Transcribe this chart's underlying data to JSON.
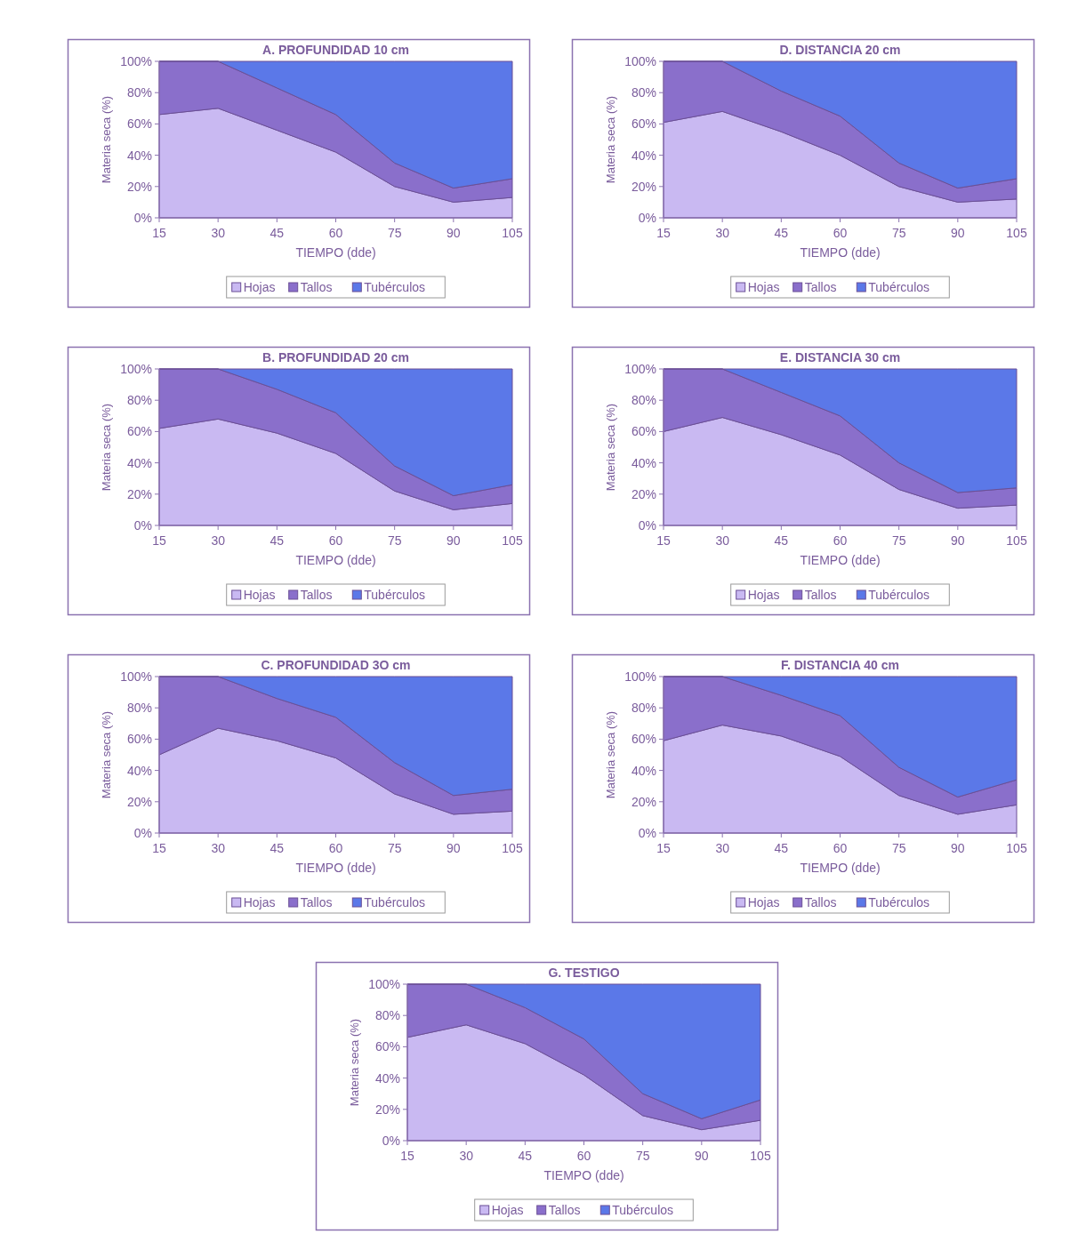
{
  "chart_data": [
    {
      "type": "area",
      "title": "A. PROFUNDIDAD 10 cm",
      "xlabel": "TIEMPO (dde)",
      "ylabel": "Materia seca (%)",
      "x": [
        15,
        30,
        45,
        60,
        75,
        90,
        105
      ],
      "xlim": [
        15,
        105
      ],
      "xticks": [
        15,
        30,
        45,
        60,
        75,
        90,
        105
      ],
      "ylim": [
        0,
        100
      ],
      "yticks": [
        {
          "value": 0,
          "label": "0%"
        },
        {
          "value": 20,
          "label": "20%"
        },
        {
          "value": 40,
          "label": "40%"
        },
        {
          "value": 60,
          "label": "60%"
        },
        {
          "value": 80,
          "label": "80%"
        },
        {
          "value": 100,
          "label": "100%"
        }
      ],
      "stacked": true,
      "legend": "bottom",
      "series": [
        {
          "name": "Hojas",
          "color": "#c9b9f2",
          "values": [
            66,
            70,
            56,
            42,
            20,
            10,
            13
          ]
        },
        {
          "name": "Tallos",
          "color": "#8a6fcb",
          "values": [
            34,
            30,
            27,
            24,
            15,
            9,
            12
          ]
        },
        {
          "name": "Tubérculos",
          "color": "#5b78e8",
          "values": [
            0,
            0,
            17,
            34,
            65,
            81,
            75
          ]
        }
      ]
    },
    {
      "type": "area",
      "title": "D. DISTANCIA 20 cm",
      "xlabel": "TIEMPO (dde)",
      "ylabel": "Materia seca (%)",
      "x": [
        15,
        30,
        45,
        60,
        75,
        90,
        105
      ],
      "xlim": [
        15,
        105
      ],
      "xticks": [
        15,
        30,
        45,
        60,
        75,
        90,
        105
      ],
      "ylim": [
        0,
        100
      ],
      "yticks": [
        {
          "value": 0,
          "label": "0%"
        },
        {
          "value": 20,
          "label": "20%"
        },
        {
          "value": 40,
          "label": "40%"
        },
        {
          "value": 60,
          "label": "60%"
        },
        {
          "value": 80,
          "label": "80%"
        },
        {
          "value": 100,
          "label": "100%"
        }
      ],
      "stacked": true,
      "legend": "bottom",
      "series": [
        {
          "name": "Hojas",
          "color": "#c9b9f2",
          "values": [
            61,
            68,
            55,
            40,
            20,
            10,
            12
          ]
        },
        {
          "name": "Tallos",
          "color": "#8a6fcb",
          "values": [
            39,
            32,
            26,
            25,
            15,
            9,
            13
          ]
        },
        {
          "name": "Tubérculos",
          "color": "#5b78e8",
          "values": [
            0,
            0,
            19,
            35,
            65,
            81,
            75
          ]
        }
      ]
    },
    {
      "type": "area",
      "title": "B. PROFUNDIDAD 20 cm",
      "xlabel": "TIEMPO (dde)",
      "ylabel": "Materia seca (%)",
      "x": [
        15,
        30,
        45,
        60,
        75,
        90,
        105
      ],
      "xlim": [
        15,
        105
      ],
      "xticks": [
        15,
        30,
        45,
        60,
        75,
        90,
        105
      ],
      "ylim": [
        0,
        100
      ],
      "yticks": [
        {
          "value": 0,
          "label": "0%"
        },
        {
          "value": 20,
          "label": "20%"
        },
        {
          "value": 40,
          "label": "40%"
        },
        {
          "value": 60,
          "label": "60%"
        },
        {
          "value": 80,
          "label": "80%"
        },
        {
          "value": 100,
          "label": "100%"
        }
      ],
      "stacked": true,
      "legend": "bottom",
      "series": [
        {
          "name": "Hojas",
          "color": "#c9b9f2",
          "values": [
            62,
            68,
            59,
            46,
            22,
            10,
            14
          ]
        },
        {
          "name": "Tallos",
          "color": "#8a6fcb",
          "values": [
            38,
            32,
            28,
            26,
            16,
            9,
            12
          ]
        },
        {
          "name": "Tubérculos",
          "color": "#5b78e8",
          "values": [
            0,
            0,
            13,
            28,
            62,
            81,
            74
          ]
        }
      ]
    },
    {
      "type": "area",
      "title": "E. DISTANCIA 30 cm",
      "xlabel": "TIEMPO (dde)",
      "ylabel": "Materia seca (%)",
      "x": [
        15,
        30,
        45,
        60,
        75,
        90,
        105
      ],
      "xlim": [
        15,
        105
      ],
      "xticks": [
        15,
        30,
        45,
        60,
        75,
        90,
        105
      ],
      "ylim": [
        0,
        100
      ],
      "yticks": [
        {
          "value": 0,
          "label": "0%"
        },
        {
          "value": 20,
          "label": "20%"
        },
        {
          "value": 40,
          "label": "40%"
        },
        {
          "value": 60,
          "label": "60%"
        },
        {
          "value": 80,
          "label": "80%"
        },
        {
          "value": 100,
          "label": "100%"
        }
      ],
      "stacked": true,
      "legend": "bottom",
      "series": [
        {
          "name": "Hojas",
          "color": "#c9b9f2",
          "values": [
            60,
            69,
            58,
            45,
            23,
            11,
            13
          ]
        },
        {
          "name": "Tallos",
          "color": "#8a6fcb",
          "values": [
            40,
            31,
            27,
            25,
            17,
            10,
            11
          ]
        },
        {
          "name": "Tubérculos",
          "color": "#5b78e8",
          "values": [
            0,
            0,
            15,
            30,
            60,
            79,
            76
          ]
        }
      ]
    },
    {
      "type": "area",
      "title": "C. PROFUNDIDAD 3O cm",
      "xlabel": "TIEMPO (dde)",
      "ylabel": "Materia seca (%)",
      "x": [
        15,
        30,
        45,
        60,
        75,
        90,
        105
      ],
      "xlim": [
        15,
        105
      ],
      "xticks": [
        15,
        30,
        45,
        60,
        75,
        90,
        105
      ],
      "ylim": [
        0,
        100
      ],
      "yticks": [
        {
          "value": 0,
          "label": "0%"
        },
        {
          "value": 20,
          "label": "20%"
        },
        {
          "value": 40,
          "label": "40%"
        },
        {
          "value": 60,
          "label": "60%"
        },
        {
          "value": 80,
          "label": "80%"
        },
        {
          "value": 100,
          "label": "100%"
        }
      ],
      "stacked": true,
      "legend": "bottom",
      "series": [
        {
          "name": "Hojas",
          "color": "#c9b9f2",
          "values": [
            50,
            67,
            59,
            48,
            25,
            12,
            14
          ]
        },
        {
          "name": "Tallos",
          "color": "#8a6fcb",
          "values": [
            50,
            33,
            27,
            26,
            20,
            12,
            14
          ]
        },
        {
          "name": "Tubérculos",
          "color": "#5b78e8",
          "values": [
            0,
            0,
            14,
            26,
            55,
            76,
            72
          ]
        }
      ]
    },
    {
      "type": "area",
      "title": "F. DISTANCIA 40 cm",
      "xlabel": "TIEMPO (dde)",
      "ylabel": "Materia seca (%)",
      "x": [
        15,
        30,
        45,
        60,
        75,
        90,
        105
      ],
      "xlim": [
        15,
        105
      ],
      "xticks": [
        15,
        30,
        45,
        60,
        75,
        90,
        105
      ],
      "ylim": [
        0,
        100
      ],
      "yticks": [
        {
          "value": 0,
          "label": "0%"
        },
        {
          "value": 20,
          "label": "20%"
        },
        {
          "value": 40,
          "label": "40%"
        },
        {
          "value": 60,
          "label": "60%"
        },
        {
          "value": 80,
          "label": "80%"
        },
        {
          "value": 100,
          "label": "100%"
        }
      ],
      "stacked": true,
      "legend": "bottom",
      "series": [
        {
          "name": "Hojas",
          "color": "#c9b9f2",
          "values": [
            59,
            69,
            62,
            49,
            24,
            12,
            18
          ]
        },
        {
          "name": "Tallos",
          "color": "#8a6fcb",
          "values": [
            41,
            31,
            26,
            26,
            18,
            11,
            16
          ]
        },
        {
          "name": "Tubérculos",
          "color": "#5b78e8",
          "values": [
            0,
            0,
            12,
            25,
            58,
            77,
            66
          ]
        }
      ]
    },
    {
      "type": "area",
      "title": "G. TESTIGO",
      "xlabel": "TIEMPO (dde)",
      "ylabel": "Materia seca (%)",
      "x": [
        15,
        30,
        45,
        60,
        75,
        90,
        105
      ],
      "xlim": [
        15,
        105
      ],
      "xticks": [
        15,
        30,
        45,
        60,
        75,
        90,
        105
      ],
      "ylim": [
        0,
        100
      ],
      "yticks": [
        {
          "value": 0,
          "label": "0%"
        },
        {
          "value": 20,
          "label": "20%"
        },
        {
          "value": 40,
          "label": "40%"
        },
        {
          "value": 60,
          "label": "60%"
        },
        {
          "value": 80,
          "label": "80%"
        },
        {
          "value": 100,
          "label": "100%"
        }
      ],
      "stacked": true,
      "legend": "bottom",
      "series": [
        {
          "name": "Hojas",
          "color": "#c9b9f2",
          "values": [
            66,
            74,
            62,
            42,
            16,
            7,
            13
          ]
        },
        {
          "name": "Tallos",
          "color": "#8a6fcb",
          "values": [
            34,
            26,
            23,
            23,
            14,
            7,
            13
          ]
        },
        {
          "name": "Tubérculos",
          "color": "#5b78e8",
          "values": [
            0,
            0,
            15,
            35,
            70,
            86,
            74
          ]
        }
      ]
    }
  ]
}
